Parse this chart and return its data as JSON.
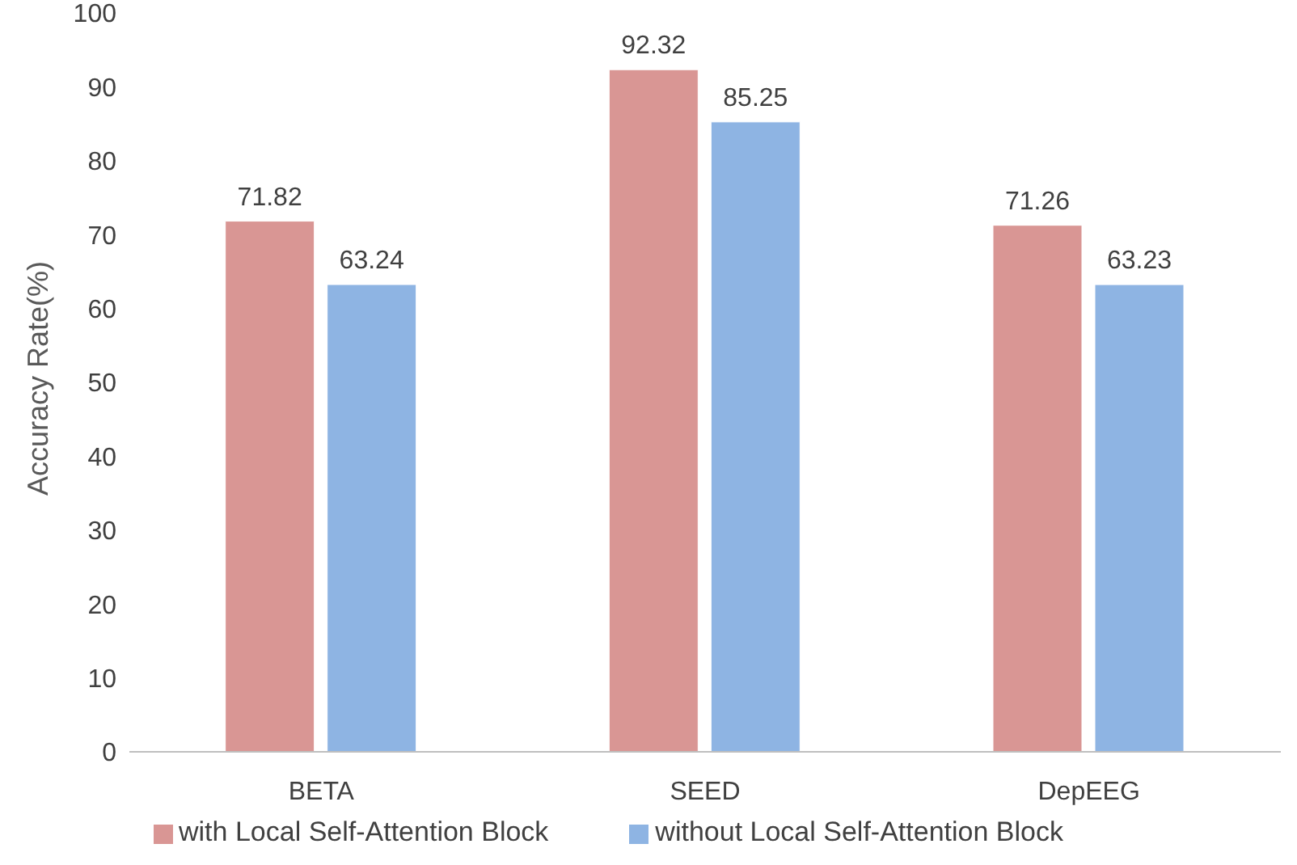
{
  "chart_data": {
    "type": "bar",
    "ylabel": "Accuracy Rate(%)",
    "categories": [
      "BETA",
      "SEED",
      "DepEEG"
    ],
    "series": [
      {
        "name": "with Local Self-Attention Block",
        "color": "#d99694",
        "values": [
          71.82,
          92.32,
          71.26
        ]
      },
      {
        "name": "without Local Self-Attention Block",
        "color": "#8eb4e3",
        "values": [
          63.24,
          85.25,
          63.23
        ]
      }
    ],
    "ylim": [
      0,
      100
    ],
    "yticks": [
      0,
      10,
      20,
      30,
      40,
      50,
      60,
      70,
      80,
      90,
      100
    ],
    "data_labels": true,
    "legend": "bottom",
    "grid": false
  }
}
